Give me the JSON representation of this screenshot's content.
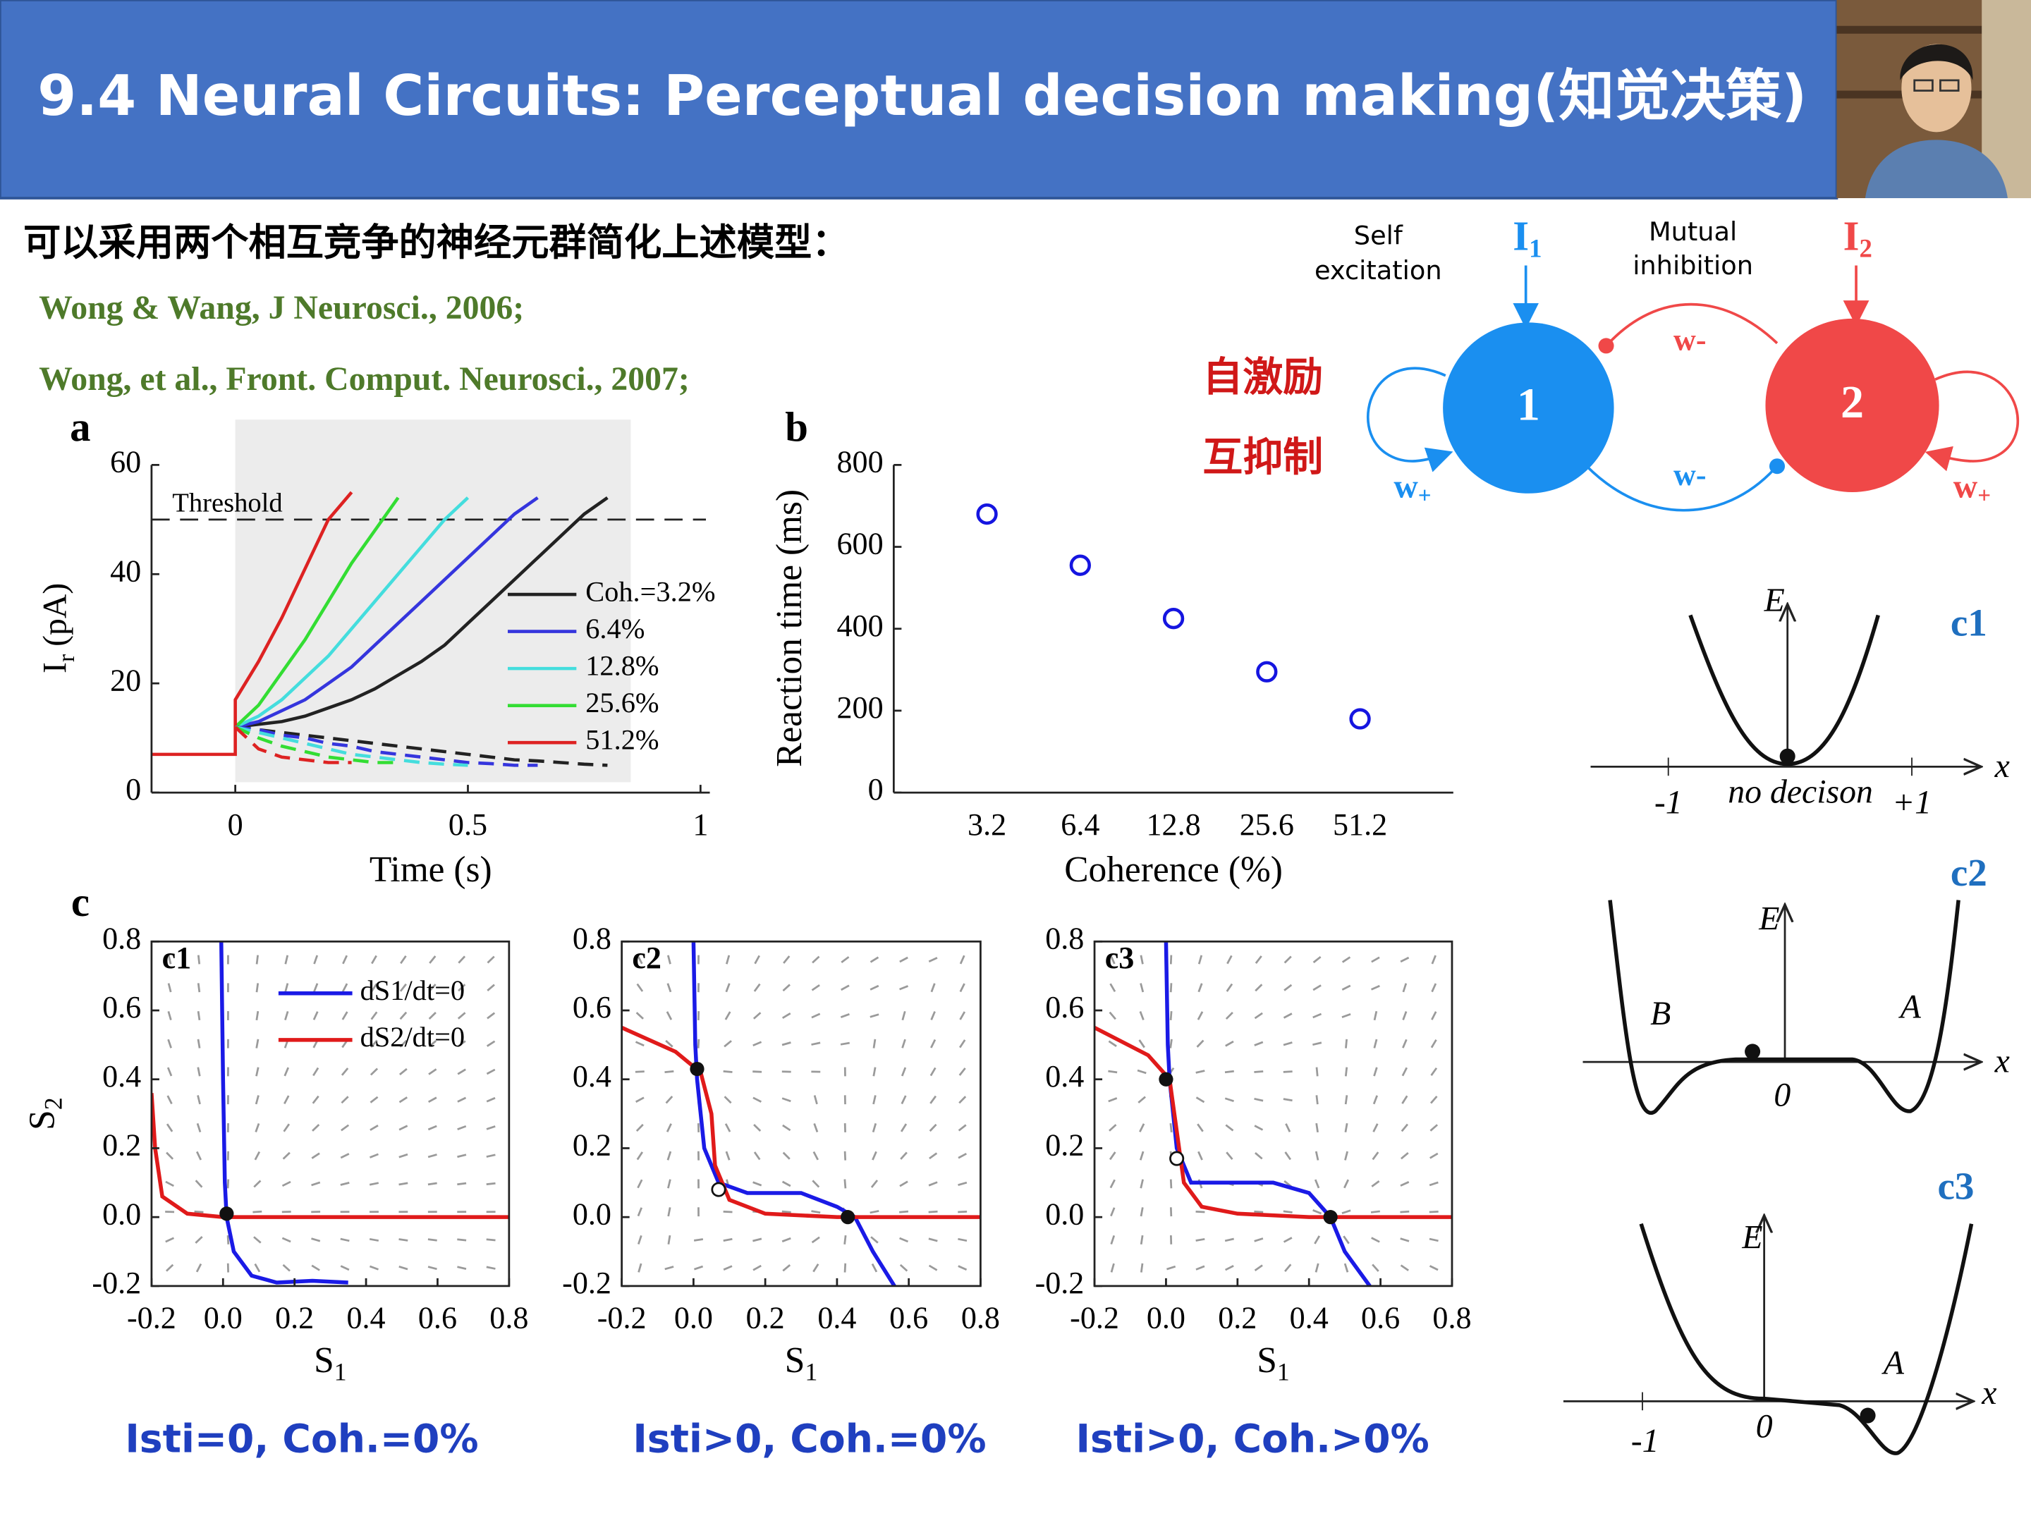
{
  "header": {
    "title": "9.4 Neural Circuits: Perceptual decision making(知觉决策)"
  },
  "intro": "可以采用两个相互竞争的神经元群简化上述模型：",
  "references": [
    "Wong & Wang, J Neurosci., 2006;",
    "Wong, et al., Front. Comput. Neurosci., 2007;"
  ],
  "annotations": [
    "自激励",
    "互抑制"
  ],
  "circuit": {
    "self_excitation": [
      "Self",
      "excitation"
    ],
    "mutual_inhibition": [
      "Mutual",
      "inhibition"
    ],
    "input": "I",
    "input_1_sub": "1",
    "input_2_sub": "2",
    "node_1": "1",
    "node_2": "2",
    "weight": "w",
    "minus": "-",
    "plus": "+"
  },
  "panel_c": "c",
  "chart_data": [
    {
      "type": "line",
      "panel": "a",
      "x_label": "Time (s)",
      "y_label": {
        "main": "I",
        "sub": "r",
        "unit": "(pA)"
      },
      "x": [
        -0.18,
        0,
        0,
        0.05,
        0.1,
        0.15,
        0.2,
        0.25,
        0.3,
        0.35,
        0.4,
        0.45,
        0.5,
        0.55,
        0.6,
        0.65,
        0.7,
        0.75,
        0.8
      ],
      "xlim": [
        -0.18,
        1.02
      ],
      "ylim": [
        0,
        60
      ],
      "xticks": [
        0,
        0.5,
        1
      ],
      "yticks": [
        0,
        20,
        40,
        60
      ],
      "threshold": 50,
      "threshold_label": "Threshold",
      "shaded_x": [
        0,
        0.85
      ],
      "series": [
        {
          "name": "Coh.=3.2%",
          "color": "#222222",
          "values": [
            null,
            null,
            12,
            12.5,
            13,
            14,
            15.5,
            17,
            19,
            21.5,
            24,
            27,
            31,
            35,
            39,
            43,
            47,
            51,
            54
          ]
        },
        {
          "name": "6.4%",
          "color": "#3535dd",
          "values": [
            null,
            null,
            12,
            13,
            15,
            17,
            20,
            23,
            27,
            31,
            35,
            39,
            43,
            47,
            51,
            54,
            null,
            null,
            null
          ]
        },
        {
          "name": "12.8%",
          "color": "#44dddd",
          "values": [
            null,
            null,
            12,
            14,
            17,
            21,
            25,
            30,
            35,
            40,
            45,
            50,
            54,
            null,
            null,
            null,
            null,
            null,
            null
          ]
        },
        {
          "name": "25.6%",
          "color": "#33dd33",
          "values": [
            null,
            null,
            12,
            16,
            22,
            28,
            35,
            42,
            48,
            54,
            null,
            null,
            null,
            null,
            null,
            null,
            null,
            null,
            null
          ]
        },
        {
          "name": "51.2%",
          "color": "#dd2222",
          "values": [
            7,
            7,
            17,
            24,
            32,
            41,
            50,
            55,
            null,
            null,
            null,
            null,
            null,
            null,
            null,
            null,
            null,
            null,
            null
          ]
        },
        {
          "color": "#222222",
          "dashed": true,
          "values": [
            null,
            null,
            12,
            11.5,
            11,
            10.5,
            10,
            9.5,
            9,
            8.5,
            8,
            7.5,
            7,
            6.5,
            6,
            5.8,
            5.5,
            5.2,
            5
          ]
        },
        {
          "color": "#3535dd",
          "dashed": true,
          "values": [
            null,
            null,
            12,
            11.5,
            10.5,
            10,
            9,
            8.5,
            7.5,
            7,
            6.5,
            6,
            5.5,
            5.3,
            5,
            5,
            null,
            null,
            null
          ]
        },
        {
          "color": "#44dddd",
          "dashed": true,
          "values": [
            null,
            null,
            12,
            11,
            10,
            9,
            8,
            7,
            6.5,
            6,
            5.5,
            5.2,
            5,
            null,
            null,
            null,
            null,
            null,
            null
          ]
        },
        {
          "color": "#33dd33",
          "dashed": true,
          "values": [
            null,
            null,
            12,
            10,
            8.5,
            7.5,
            6.5,
            6,
            5.5,
            5.5,
            null,
            null,
            null,
            null,
            null,
            null,
            null,
            null,
            null
          ]
        },
        {
          "color": "#dd2222",
          "dashed": true,
          "values": [
            null,
            null,
            12,
            8,
            6.5,
            6,
            5.5,
            5.5,
            null,
            null,
            null,
            null,
            null,
            null,
            null,
            null,
            null,
            null,
            null
          ]
        }
      ]
    },
    {
      "type": "scatter",
      "panel": "b",
      "x_label": "Coherence (%)",
      "y_label": "Reaction time (ms)",
      "categories": [
        "3.2",
        "6.4",
        "12.8",
        "25.6",
        "51.2"
      ],
      "values": [
        680,
        555,
        425,
        295,
        180
      ],
      "color": "#1515e0",
      "ylim": [
        0,
        800
      ],
      "yticks": [
        0,
        200,
        400,
        600,
        800
      ]
    },
    {
      "type": "phase",
      "panel": "c1",
      "x_label": {
        "main": "S",
        "sub": "1"
      },
      "y_label": {
        "main": "S",
        "sub": "2"
      },
      "xlim": [
        -0.2,
        0.8
      ],
      "ylim": [
        -0.2,
        0.8
      ],
      "xticks": [
        -0.2,
        {
          "value": 0,
          "label": "0.0"
        },
        0.2,
        0.4,
        0.6,
        0.8
      ],
      "yticks": [
        -0.2,
        {
          "value": 0,
          "label": "0.0"
        },
        0.2,
        0.4,
        0.6,
        0.8
      ],
      "series": [
        {
          "name": "dS1/dt=0",
          "color": "#1a1ae6",
          "x": [
            -0.005,
            0,
            0.005,
            0.01,
            0.03,
            0.08,
            0.15,
            0.25,
            0.35
          ],
          "values": [
            0.8,
            0.4,
            0.1,
            0,
            -0.1,
            -0.17,
            -0.19,
            -0.185,
            -0.19
          ]
        },
        {
          "name": "dS2/dt=0",
          "color": "#e01a1a",
          "x": [
            -0.2,
            -0.19,
            -0.17,
            -0.1,
            0,
            0.8
          ],
          "values": [
            0.36,
            0.2,
            0.06,
            0.01,
            0,
            0
          ]
        }
      ],
      "stable_points": {
        "x": [
          0.01
        ],
        "y": [
          0.01
        ]
      },
      "unstable_points": {
        "x": [],
        "y": []
      }
    },
    {
      "type": "phase",
      "panel": "c2",
      "x_label": {
        "main": "S",
        "sub": "1"
      },
      "xlim": [
        -0.2,
        0.8
      ],
      "ylim": [
        -0.2,
        0.8
      ],
      "xticks": [
        -0.2,
        {
          "value": 0,
          "label": "0.0"
        },
        0.2,
        0.4,
        0.6,
        0.8
      ],
      "yticks": [
        -0.2,
        {
          "value": 0,
          "label": "0.0"
        },
        0.2,
        0.4,
        0.6,
        0.8
      ],
      "series": [
        {
          "color": "#1a1ae6",
          "x": [
            0,
            0.005,
            0.01,
            0.03,
            0.07,
            0.15,
            0.3,
            0.4,
            0.45,
            0.5,
            0.56
          ],
          "values": [
            0.8,
            0.5,
            0.4,
            0.2,
            0.1,
            0.07,
            0.07,
            0.03,
            0,
            -0.1,
            -0.2
          ]
        },
        {
          "color": "#e01a1a",
          "x": [
            -0.2,
            -0.05,
            0.02,
            0.05,
            0.06,
            0.1,
            0.2,
            0.4,
            0.8
          ],
          "values": [
            0.55,
            0.48,
            0.42,
            0.3,
            0.15,
            0.05,
            0.01,
            0,
            0
          ]
        }
      ],
      "stable_points": {
        "x": [
          0.01,
          0.43
        ],
        "y": [
          0.43,
          0
        ]
      },
      "unstable_points": {
        "x": [
          0.07
        ],
        "y": [
          0.08
        ]
      }
    },
    {
      "type": "phase",
      "panel": "c3",
      "x_label": {
        "main": "S",
        "sub": "1"
      },
      "xlim": [
        -0.2,
        0.8
      ],
      "ylim": [
        -0.2,
        0.8
      ],
      "xticks": [
        -0.2,
        {
          "value": 0,
          "label": "0.0"
        },
        0.2,
        0.4,
        0.6,
        0.8
      ],
      "yticks": [
        -0.2,
        {
          "value": 0,
          "label": "0.0"
        },
        0.2,
        0.4,
        0.6,
        0.8
      ],
      "series": [
        {
          "color": "#1a1ae6",
          "x": [
            0,
            0.005,
            0.01,
            0.03,
            0.07,
            0.15,
            0.3,
            0.4,
            0.46,
            0.5,
            0.57
          ],
          "values": [
            0.8,
            0.5,
            0.4,
            0.2,
            0.1,
            0.1,
            0.1,
            0.07,
            0,
            -0.1,
            -0.2
          ]
        },
        {
          "color": "#e01a1a",
          "x": [
            -0.2,
            -0.05,
            0.01,
            0.03,
            0.05,
            0.1,
            0.2,
            0.4,
            0.8
          ],
          "values": [
            0.55,
            0.47,
            0.4,
            0.25,
            0.1,
            0.03,
            0.01,
            0,
            0
          ]
        }
      ],
      "stable_points": {
        "x": [
          0,
          0.46
        ],
        "y": [
          0.4,
          0
        ]
      },
      "unstable_points": {
        "x": [
          0.03
        ],
        "y": [
          0.17
        ]
      }
    }
  ],
  "energy_diagrams": [
    {
      "label": "c1",
      "E": "E",
      "x": "x",
      "ticks": [
        "-1",
        "no decison",
        "+1"
      ]
    },
    {
      "label": "c2",
      "E": "E",
      "x": "x",
      "ticks": [
        "B",
        "0",
        "A"
      ]
    },
    {
      "label": "c3",
      "E": "E",
      "x": "x",
      "ticks": [
        "-1",
        "0",
        "A"
      ]
    }
  ],
  "captions": [
    "Isti=0, Coh.=0%",
    "Isti>0, Coh.=0%",
    "Isti>0, Coh.>0%"
  ]
}
